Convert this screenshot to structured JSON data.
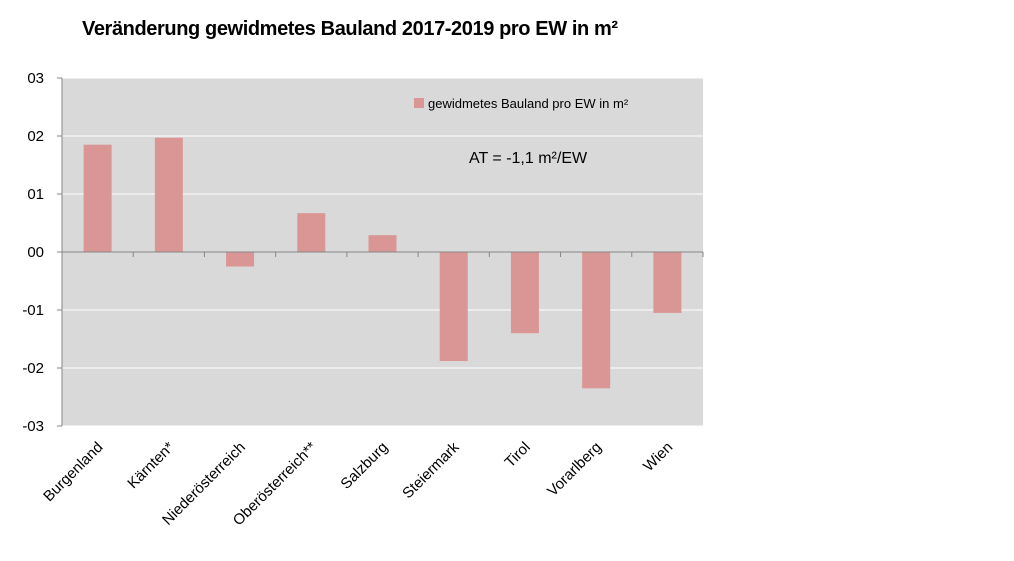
{
  "chart_data": {
    "type": "bar",
    "title": "Veränderung gewidmetes Bauland 2017-2019 pro EW in m²",
    "categories": [
      "Burgenland",
      "Kärnten*",
      "Niederösterreich",
      "Oberösterreich**",
      "Salzburg",
      "Steiermark",
      "Tirol",
      "Vorarlberg",
      "Wien"
    ],
    "series": [
      {
        "name": "gewidmetes Bauland pro EW in m²",
        "values": [
          1.85,
          1.97,
          -0.25,
          0.67,
          0.29,
          -1.88,
          -1.4,
          -2.35,
          -1.05
        ],
        "color": "#d99694"
      }
    ],
    "y_ticks": [
      "03",
      "02",
      "01",
      "00",
      "-01",
      "-02",
      "-03"
    ],
    "ylim": [
      -3,
      3
    ],
    "y_tick_values": [
      3,
      2,
      1,
      0,
      -1,
      -2,
      -3
    ],
    "xlabel": "",
    "ylabel": "",
    "grid": true,
    "plot_background": "#d9d9d9",
    "gridline_color": "#ffffff",
    "legend_position": "top-right",
    "annotation": "AT = -1,1 m²/EW"
  }
}
